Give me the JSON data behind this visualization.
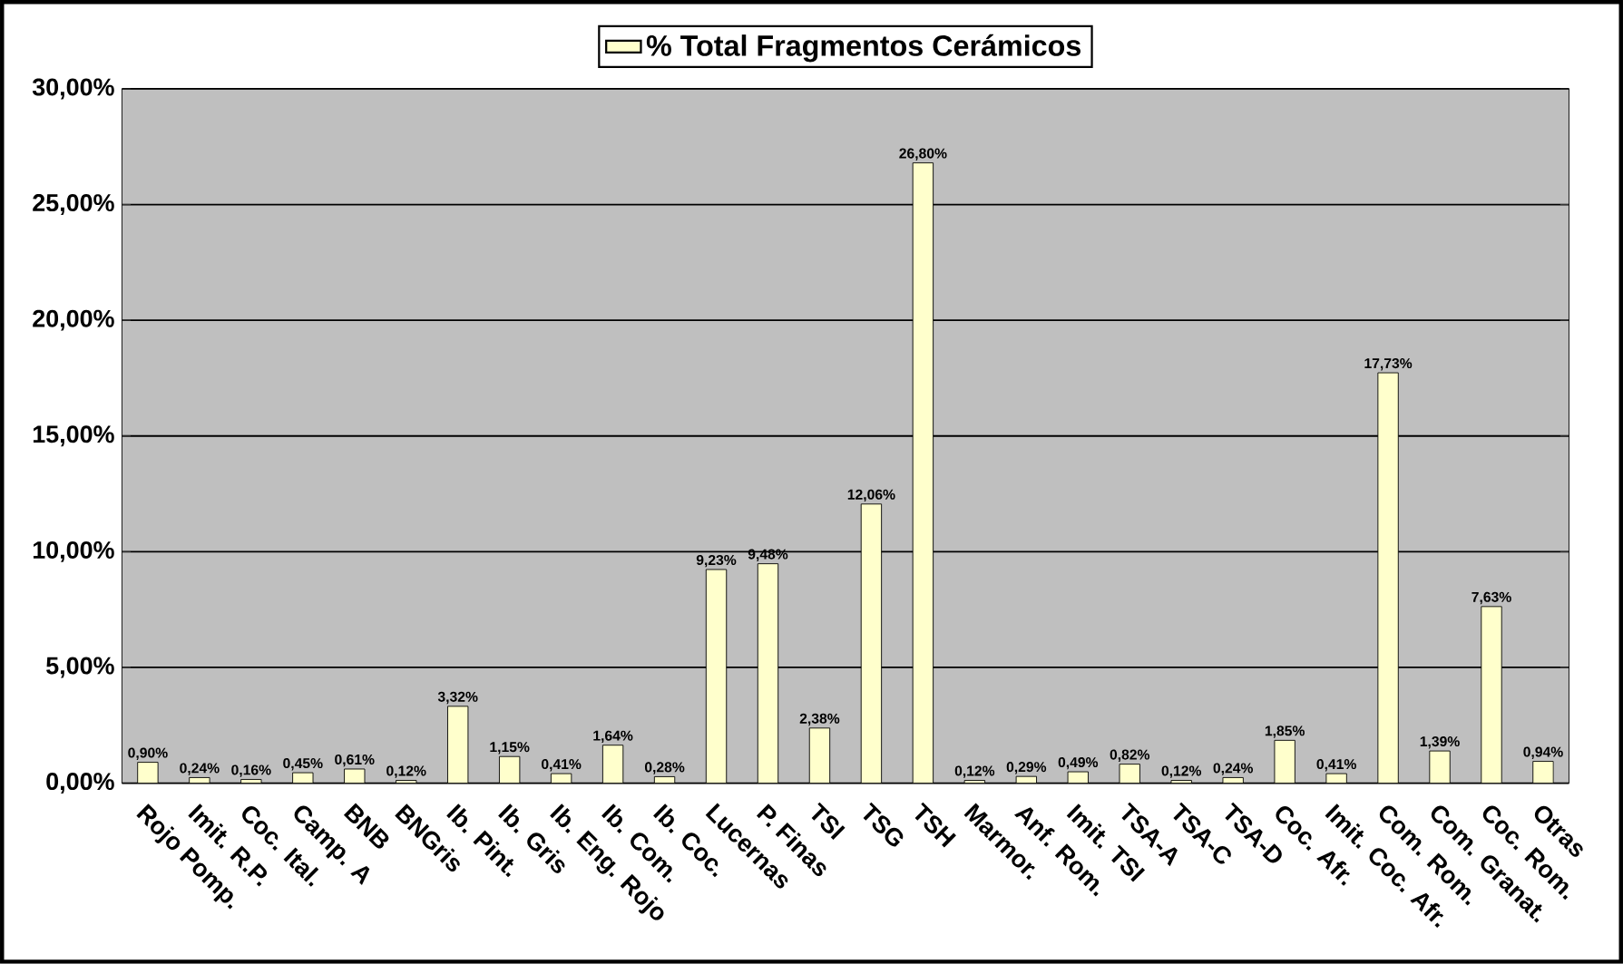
{
  "chart_data": {
    "type": "bar",
    "categories": [
      "Rojo Pomp.",
      "Imit. R.P.",
      "Coc. Ital.",
      "Camp. A",
      "BNB",
      "BNGris",
      "Ib. Pint.",
      "Ib. Gris",
      "Ib. Eng. Rojo",
      "Ib. Com.",
      "Ib. Coc.",
      "Lucernas",
      "P. Finas",
      "TSI",
      "TSG",
      "TSH",
      "Marmor.",
      "Anf. Rom.",
      "Imit. TSI",
      "TSA-A",
      "TSA-C",
      "TSA-D",
      "Coc. Afr.",
      "Imit. Coc. Afr.",
      "Com. Rom.",
      "Com. Granat.",
      "Coc. Rom.",
      "Otras"
    ],
    "series": [
      {
        "name": "% Total Fragmentos Cerámicos",
        "color": "#ffffcc",
        "values": [
          0.9,
          0.24,
          0.16,
          0.45,
          0.61,
          0.12,
          3.32,
          1.15,
          0.41,
          1.64,
          0.28,
          9.23,
          9.48,
          2.38,
          12.06,
          26.8,
          0.12,
          0.29,
          0.49,
          0.82,
          0.12,
          0.24,
          1.85,
          0.41,
          17.73,
          1.39,
          7.63,
          0.94
        ],
        "value_labels": [
          "0,90%",
          "0,24%",
          "0,16%",
          "0,45%",
          "0,61%",
          "0,12%",
          "3,32%",
          "1,15%",
          "0,41%",
          "1,64%",
          "0,28%",
          "9,23%",
          "9,48%",
          "2,38%",
          "12,06%",
          "26,80%",
          "0,12%",
          "0,29%",
          "0,49%",
          "0,82%",
          "0,12%",
          "0,24%",
          "1,85%",
          "0,41%",
          "17,73%",
          "1,39%",
          "7,63%",
          "0,94%"
        ]
      }
    ],
    "ylim": [
      0,
      30
    ],
    "yticks": [
      {
        "value": 0,
        "label": "0,00%"
      },
      {
        "value": 5,
        "label": "5,00%"
      },
      {
        "value": 10,
        "label": "10,00%"
      },
      {
        "value": 15,
        "label": "15,00%"
      },
      {
        "value": 20,
        "label": "20,00%"
      },
      {
        "value": 25,
        "label": "25,00%"
      },
      {
        "value": 30,
        "label": "30,00%"
      }
    ],
    "grid": "y",
    "legend": "top"
  }
}
